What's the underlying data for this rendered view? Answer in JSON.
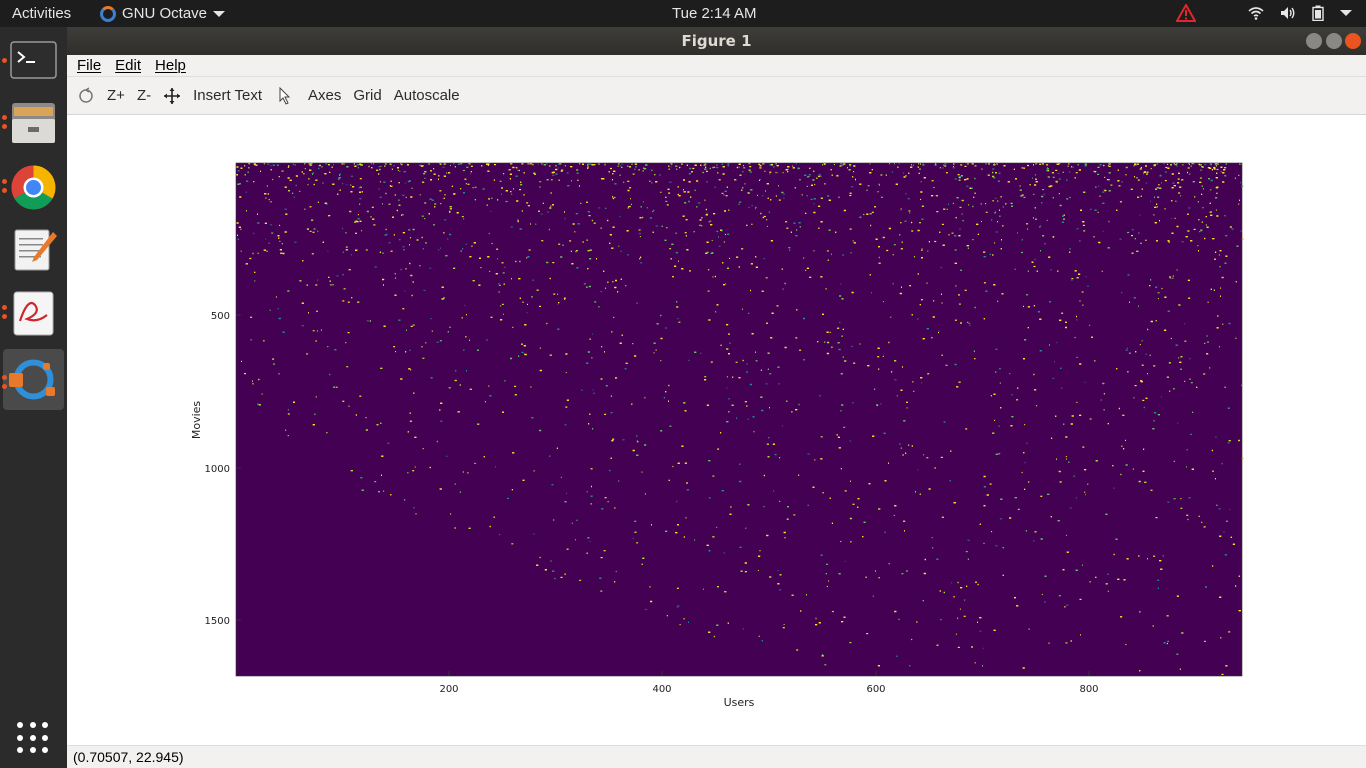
{
  "topbar": {
    "activities": "Activities",
    "app_name": "GNU Octave",
    "clock": "Tue  2:14 AM"
  },
  "window": {
    "title": "Figure 1",
    "menu": {
      "file": "File",
      "edit": "Edit",
      "help": "Help"
    },
    "toolbar": {
      "zoom_in": "Z+",
      "zoom_out": "Z-",
      "insert_text": "Insert Text",
      "axes": "Axes",
      "grid": "Grid",
      "autoscale": "Autoscale"
    },
    "status": "(0.70507, 22.945)"
  },
  "dock": {
    "items": [
      "terminal-icon",
      "files-icon",
      "chrome-icon",
      "text-editor-icon",
      "evince-icon",
      "octave-icon"
    ]
  },
  "colors": {
    "background": "#440154",
    "mid": "#21918c",
    "high": "#fde725"
  },
  "chart_data": {
    "type": "heatmap",
    "title": "",
    "xlabel": "Users",
    "ylabel": "Movies",
    "xlim": [
      1,
      943
    ],
    "ylim": [
      1,
      1682
    ],
    "y_reversed": true,
    "x_ticks": [
      "200",
      "400",
      "600",
      "800"
    ],
    "y_ticks": [
      "500",
      "1000",
      "1500"
    ],
    "colormap": "viridis",
    "grid": false
  }
}
